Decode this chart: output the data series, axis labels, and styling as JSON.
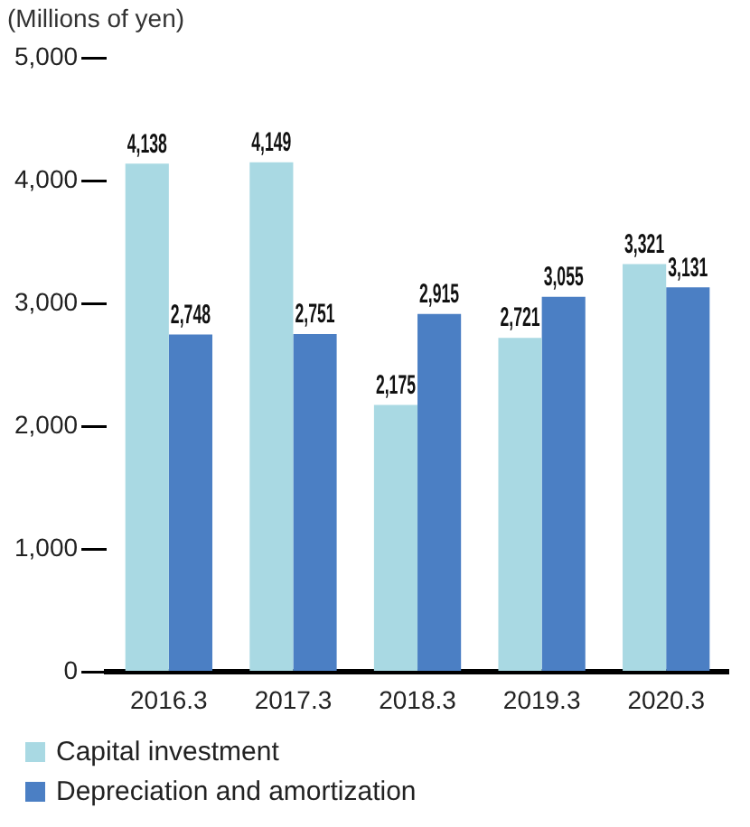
{
  "chart_data": {
    "type": "bar",
    "ylabel": "(Millions of yen)",
    "categories": [
      "2016.3",
      "2017.3",
      "2018.3",
      "2019.3",
      "2020.3"
    ],
    "series": [
      {
        "name": "Capital investment",
        "color": "#a9d9e3",
        "values": [
          4138,
          4149,
          2175,
          2721,
          3321
        ],
        "value_labels": [
          "4,138",
          "4,149",
          "2,175",
          "2,721",
          "3,321"
        ]
      },
      {
        "name": "Depreciation and amortization",
        "color": "#4b7fc4",
        "values": [
          2748,
          2751,
          2915,
          3055,
          3131
        ],
        "value_labels": [
          "2,748",
          "2,751",
          "2,915",
          "3,055",
          "3,131"
        ]
      }
    ],
    "ylim": [
      0,
      5000
    ],
    "yticks": [
      0,
      {
        "value": 1000,
        "label": "1,000"
      },
      {
        "value": 2000,
        "label": "2,000"
      },
      {
        "value": 3000,
        "label": "3,000"
      },
      {
        "value": 4000,
        "label": "4,000"
      },
      {
        "value": 5000,
        "label": "5,000"
      }
    ],
    "grid": false,
    "legend": "bottom left"
  }
}
